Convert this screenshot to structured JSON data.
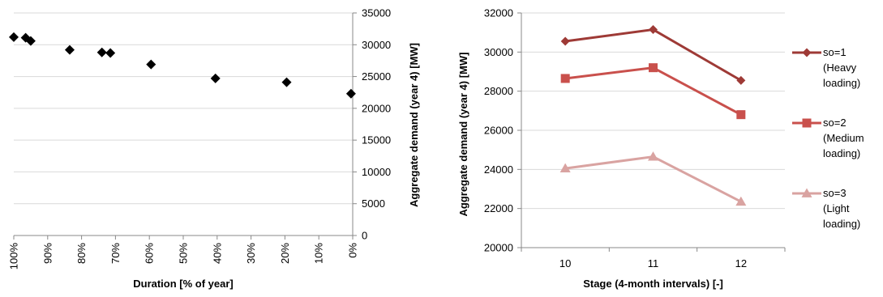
{
  "chart_data": [
    {
      "type": "scatter",
      "xlabel": "Duration [% of year]",
      "ylabel": "Aggregate demand (year 4) [MW]",
      "x_ticks": [
        "100%",
        "90%",
        "80%",
        "70%",
        "60%",
        "50%",
        "40%",
        "30%",
        "20%",
        "10%",
        "0%"
      ],
      "y_ticks": [
        "0",
        "5000",
        "10000",
        "15000",
        "20000",
        "25000",
        "30000",
        "35000"
      ],
      "xlim": [
        100,
        0
      ],
      "ylim": [
        0,
        35000
      ],
      "y_axis_position": "right",
      "grid": "horizontal",
      "marker": "diamond",
      "marker_color": "#000000",
      "points": [
        {
          "x": 100,
          "y": 31200
        },
        {
          "x": 96.5,
          "y": 31100
        },
        {
          "x": 95,
          "y": 30600
        },
        {
          "x": 83.5,
          "y": 29200
        },
        {
          "x": 74,
          "y": 28800
        },
        {
          "x": 71.5,
          "y": 28700
        },
        {
          "x": 59.5,
          "y": 26900
        },
        {
          "x": 40.5,
          "y": 24700
        },
        {
          "x": 19.5,
          "y": 24100
        },
        {
          "x": 0.5,
          "y": 22300
        }
      ]
    },
    {
      "type": "line",
      "xlabel": "Stage (4-month intervals) [-]",
      "ylabel": "Aggregate demand (year 4) [MW]",
      "categories": [
        "10",
        "11",
        "12"
      ],
      "y_ticks": [
        "20000",
        "22000",
        "24000",
        "26000",
        "28000",
        "30000",
        "32000"
      ],
      "ylim": [
        20000,
        32000
      ],
      "grid": "horizontal",
      "legend_position": "right",
      "series": [
        {
          "name": "so=1 (Heavy loading)",
          "legend_lines": [
            "so=1",
            "(Heavy",
            "loading)"
          ],
          "marker": "diamond",
          "color": "#9e3a36",
          "values": [
            30550,
            31150,
            28550
          ]
        },
        {
          "name": "so=2 (Medium loading)",
          "legend_lines": [
            "so=2",
            "(Medium",
            "loading)"
          ],
          "marker": "square",
          "color": "#c9504c",
          "values": [
            28650,
            29200,
            26800
          ]
        },
        {
          "name": "so=3 (Light loading)",
          "legend_lines": [
            "so=3",
            "(Light",
            "loading)"
          ],
          "marker": "triangle",
          "color": "#d9a3a1",
          "values": [
            24050,
            24650,
            22350
          ]
        }
      ]
    }
  ]
}
